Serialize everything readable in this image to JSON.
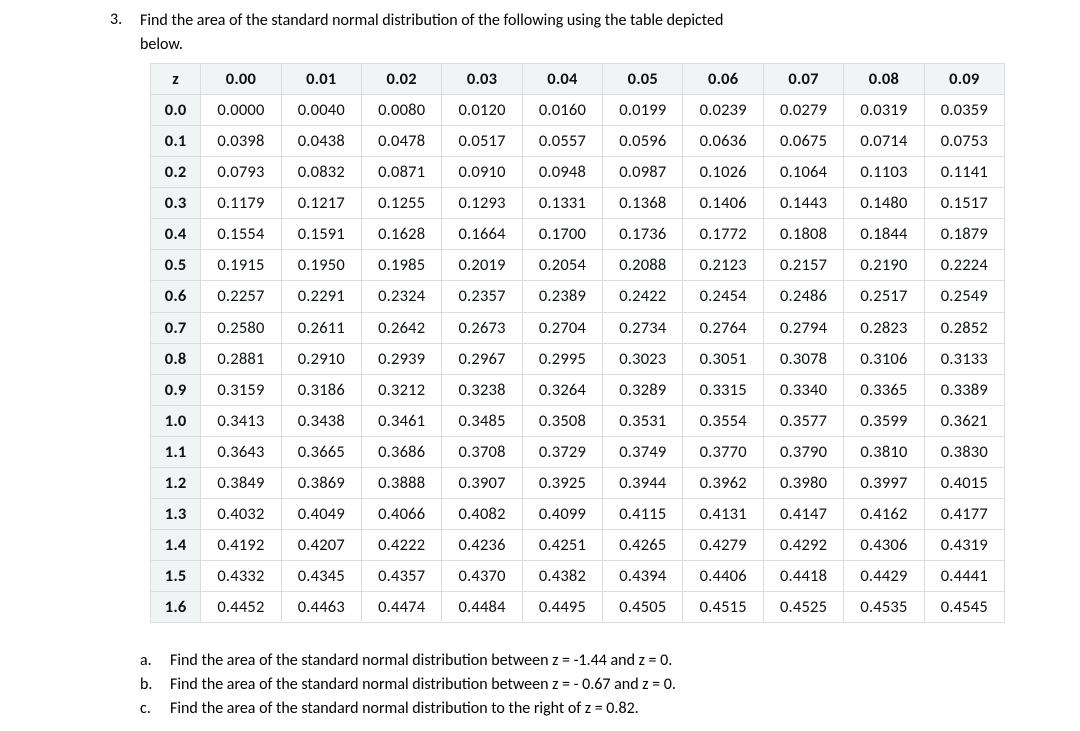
{
  "question": {
    "number": "3.",
    "line1": "Find the area of the standard normal distribution of the following using the table depicted",
    "line2": "below."
  },
  "table": {
    "corner": "z",
    "col_headers": [
      "0.00",
      "0.01",
      "0.02",
      "0.03",
      "0.04",
      "0.05",
      "0.06",
      "0.07",
      "0.08",
      "0.09"
    ],
    "row_headers": [
      "0.0",
      "0.1",
      "0.2",
      "0.3",
      "0.4",
      "0.5",
      "0.6",
      "0.7",
      "0.8",
      "0.9",
      "1.0",
      "1.1",
      "1.2",
      "1.3",
      "1.4",
      "1.5",
      "1.6"
    ],
    "rows": [
      [
        "0.0000",
        "0.0040",
        "0.0080",
        "0.0120",
        "0.0160",
        "0.0199",
        "0.0239",
        "0.0279",
        "0.0319",
        "0.0359"
      ],
      [
        "0.0398",
        "0.0438",
        "0.0478",
        "0.0517",
        "0.0557",
        "0.0596",
        "0.0636",
        "0.0675",
        "0.0714",
        "0.0753"
      ],
      [
        "0.0793",
        "0.0832",
        "0.0871",
        "0.0910",
        "0.0948",
        "0.0987",
        "0.1026",
        "0.1064",
        "0.1103",
        "0.1141"
      ],
      [
        "0.1179",
        "0.1217",
        "0.1255",
        "0.1293",
        "0.1331",
        "0.1368",
        "0.1406",
        "0.1443",
        "0.1480",
        "0.1517"
      ],
      [
        "0.1554",
        "0.1591",
        "0.1628",
        "0.1664",
        "0.1700",
        "0.1736",
        "0.1772",
        "0.1808",
        "0.1844",
        "0.1879"
      ],
      [
        "0.1915",
        "0.1950",
        "0.1985",
        "0.2019",
        "0.2054",
        "0.2088",
        "0.2123",
        "0.2157",
        "0.2190",
        "0.2224"
      ],
      [
        "0.2257",
        "0.2291",
        "0.2324",
        "0.2357",
        "0.2389",
        "0.2422",
        "0.2454",
        "0.2486",
        "0.2517",
        "0.2549"
      ],
      [
        "0.2580",
        "0.2611",
        "0.2642",
        "0.2673",
        "0.2704",
        "0.2734",
        "0.2764",
        "0.2794",
        "0.2823",
        "0.2852"
      ],
      [
        "0.2881",
        "0.2910",
        "0.2939",
        "0.2967",
        "0.2995",
        "0.3023",
        "0.3051",
        "0.3078",
        "0.3106",
        "0.3133"
      ],
      [
        "0.3159",
        "0.3186",
        "0.3212",
        "0.3238",
        "0.3264",
        "0.3289",
        "0.3315",
        "0.3340",
        "0.3365",
        "0.3389"
      ],
      [
        "0.3413",
        "0.3438",
        "0.3461",
        "0.3485",
        "0.3508",
        "0.3531",
        "0.3554",
        "0.3577",
        "0.3599",
        "0.3621"
      ],
      [
        "0.3643",
        "0.3665",
        "0.3686",
        "0.3708",
        "0.3729",
        "0.3749",
        "0.3770",
        "0.3790",
        "0.3810",
        "0.3830"
      ],
      [
        "0.3849",
        "0.3869",
        "0.3888",
        "0.3907",
        "0.3925",
        "0.3944",
        "0.3962",
        "0.3980",
        "0.3997",
        "0.4015"
      ],
      [
        "0.4032",
        "0.4049",
        "0.4066",
        "0.4082",
        "0.4099",
        "0.4115",
        "0.4131",
        "0.4147",
        "0.4162",
        "0.4177"
      ],
      [
        "0.4192",
        "0.4207",
        "0.4222",
        "0.4236",
        "0.4251",
        "0.4265",
        "0.4279",
        "0.4292",
        "0.4306",
        "0.4319"
      ],
      [
        "0.4332",
        "0.4345",
        "0.4357",
        "0.4370",
        "0.4382",
        "0.4394",
        "0.4406",
        "0.4418",
        "0.4429",
        "0.4441"
      ],
      [
        "0.4452",
        "0.4463",
        "0.4474",
        "0.4484",
        "0.4495",
        "0.4505",
        "0.4515",
        "0.4525",
        "0.4535",
        "0.4545"
      ]
    ],
    "header_bg": "#f1f4f5",
    "border_color": "#d9dde0"
  },
  "subparts": [
    {
      "label": "a.",
      "text": "Find the area of the standard normal distribution between z = -1.44 and z = 0."
    },
    {
      "label": "b.",
      "text": "Find the area of the standard normal distribution between z = - 0.67 and z = 0."
    },
    {
      "label": "c.",
      "text": "Find the area of the standard normal distribution to the right of z = 0.82."
    }
  ]
}
